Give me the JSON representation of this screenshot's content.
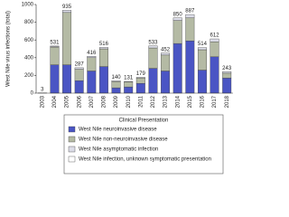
{
  "chart_data": {
    "type": "stacked-bar",
    "y_label": "West Nile virus infections (total)",
    "categories": [
      "2003",
      "2004",
      "2005",
      "2006",
      "2007",
      "2008",
      "2009",
      "2010",
      "2011",
      "2012",
      "2013",
      "2014",
      "2015",
      "2016",
      "2017",
      "2018"
    ],
    "series": [
      {
        "name": "West Nile neuroinvasive disease",
        "color": "#4a55c4",
        "values": [
          2,
          320,
          320,
          140,
          250,
          300,
          60,
          70,
          110,
          280,
          250,
          560,
          590,
          260,
          410,
          170
        ]
      },
      {
        "name": "West Nile non-neuroinvasive disease",
        "color": "#b4baa4",
        "values": [
          1,
          200,
          590,
          130,
          150,
          200,
          70,
          55,
          60,
          230,
          180,
          260,
          260,
          230,
          170,
          55
        ]
      },
      {
        "name": "West Nile asymptomatic infection",
        "color": "#dcdde8",
        "values": [
          0,
          10,
          25,
          17,
          16,
          16,
          10,
          6,
          9,
          23,
          22,
          30,
          37,
          24,
          32,
          18
        ]
      },
      {
        "name": "West Nile infection, unknown symptomatic presentation",
        "color": "#ffffff",
        "values": [
          0,
          1,
          0,
          0,
          0,
          0,
          0,
          0,
          0,
          0,
          0,
          0,
          0,
          0,
          0,
          0
        ]
      }
    ],
    "totals": [
      3,
      531,
      935,
      287,
      416,
      516,
      140,
      131,
      179,
      533,
      452,
      850,
      887,
      514,
      612,
      243
    ],
    "legend_title": "Clinical Presentation",
    "ylim": [
      0,
      1000
    ],
    "yticks": [
      0,
      200,
      400,
      600,
      800,
      1000
    ]
  }
}
